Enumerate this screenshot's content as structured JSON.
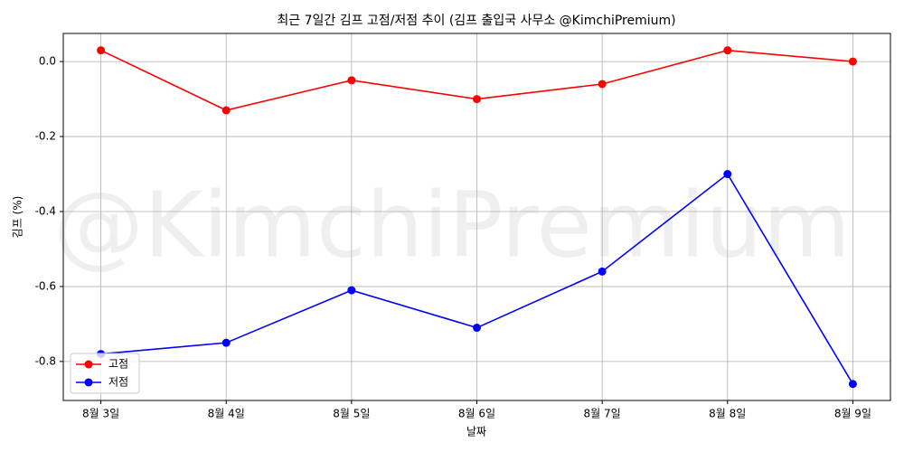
{
  "chart_data": {
    "type": "line",
    "title": "최근 7일간 김프 고점/저점 추이 (김프 출입국 사무소 @KimchiPremium)",
    "watermark": "@KimchiPremium",
    "x_label": "날짜",
    "y_label": "김프 (%)",
    "categories": [
      "8월 3일",
      "8월 4일",
      "8월 5일",
      "8월 6일",
      "8월 7일",
      "8월 8일",
      "8월 9일"
    ],
    "series": [
      {
        "name": "고점",
        "color": "#ff0000",
        "values": [
          0.03,
          -0.13,
          -0.05,
          -0.1,
          -0.06,
          0.03,
          0.0
        ]
      },
      {
        "name": "저점",
        "color": "#0000ff",
        "values": [
          -0.78,
          -0.75,
          -0.61,
          -0.71,
          -0.56,
          -0.3,
          -0.86
        ]
      }
    ],
    "ylim": [
      -0.904,
      0.075
    ],
    "yticks": [
      {
        "value": 0,
        "label": "0.0"
      },
      -0.2,
      -0.4,
      -0.6,
      -0.8
    ],
    "grid": true,
    "legend": "lower left"
  }
}
